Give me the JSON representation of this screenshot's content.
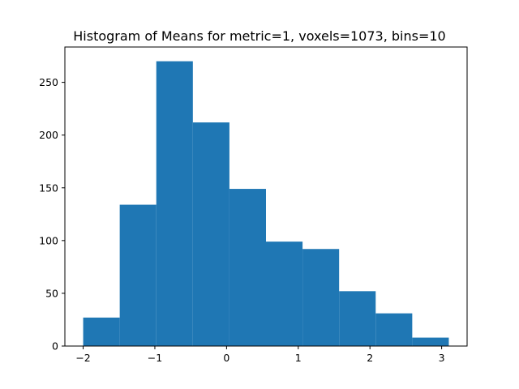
{
  "chart_data": {
    "type": "bar",
    "title": "Histogram of Means for metric=1, voxels=1073, bins=10",
    "xlabel": "",
    "ylabel": "",
    "bin_edges": [
      -2.0,
      -1.49,
      -0.98,
      -0.47,
      0.04,
      0.55,
      1.06,
      1.57,
      2.08,
      2.59,
      3.1
    ],
    "values": [
      27,
      134,
      270,
      212,
      149,
      99,
      92,
      52,
      31,
      8
    ],
    "color": "#1f77b4",
    "xlim": [
      -2.255,
      3.355
    ],
    "ylim": [
      0,
      283.5
    ],
    "xticks": [
      -2,
      -1,
      0,
      1,
      2,
      3
    ],
    "xtick_labels": [
      "−2",
      "−1",
      "0",
      "1",
      "2",
      "3"
    ],
    "yticks": [
      0,
      50,
      100,
      150,
      200,
      250
    ],
    "ytick_labels": [
      "0",
      "50",
      "100",
      "150",
      "200",
      "250"
    ],
    "grid": false,
    "legend": "none"
  }
}
